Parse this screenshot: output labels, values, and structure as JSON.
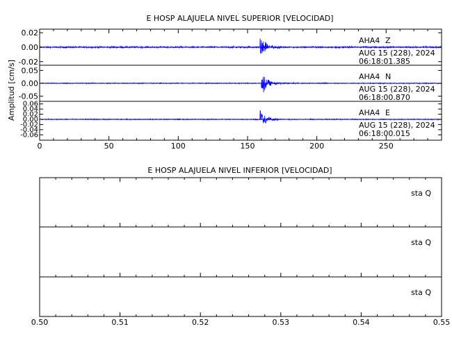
{
  "chart_data": [
    {
      "type": "line",
      "title": "E HOSP ALAJUELA NIVEL SUPERIOR [VELOCIDAD]",
      "ylabel": "Amplitud [cm/s]",
      "xlabel": "",
      "xlim": [
        0,
        290
      ],
      "x_ticks": [
        0,
        50,
        100,
        150,
        200,
        250
      ],
      "grid": false,
      "line_color": "#0000ff",
      "panels": [
        {
          "station": "AHA4",
          "component": "Z",
          "date": "AUG 15 (228), 2024",
          "time": "06:18:01.385",
          "ylim": [
            -0.025,
            0.025
          ],
          "y_ticks": [
            "0.02",
            "0.00",
            "-0.02"
          ],
          "y_tick_values": [
            0.02,
            0.0,
            -0.02
          ],
          "event_onset_s": 159,
          "peak_amplitude": 0.024,
          "noise_amplitude": 0.0012
        },
        {
          "station": "AHA4",
          "component": "N",
          "date": "AUG 15 (228), 2024",
          "time": "06:18:00.870",
          "ylim": [
            -0.07,
            0.07
          ],
          "y_ticks": [
            "0.05",
            "0.00",
            "-0.05"
          ],
          "y_tick_values": [
            0.05,
            0.0,
            -0.05
          ],
          "event_onset_s": 160,
          "peak_amplitude": 0.062,
          "noise_amplitude": 0.002
        },
        {
          "station": "AHA4",
          "component": "E",
          "date": "AUG 15 (228), 2024",
          "time": "06:18:00.015",
          "ylim": [
            -0.07,
            0.07
          ],
          "y_ticks": [
            "0.06",
            "0.04",
            "0.02",
            "0.00",
            "-0.02",
            "-0.04",
            "-0.06"
          ],
          "y_tick_values": [
            0.06,
            0.04,
            0.02,
            0.0,
            -0.02,
            -0.04,
            -0.06
          ],
          "event_onset_s": 159,
          "peak_amplitude": 0.055,
          "noise_amplitude": 0.002
        }
      ]
    },
    {
      "type": "line",
      "title": "E HOSP ALAJUELA NIVEL INFERIOR [VELOCIDAD]",
      "xlabel": "",
      "ylabel": "",
      "xlim": [
        0.5,
        0.55
      ],
      "x_ticks": [
        "0.50",
        "0.51",
        "0.52",
        "0.53",
        "0.54",
        "0.55"
      ],
      "x_tick_values": [
        0.5,
        0.51,
        0.52,
        0.53,
        0.54,
        0.55
      ],
      "grid": false,
      "panels": [
        {
          "label": "sta  Q"
        },
        {
          "label": "sta  Q"
        },
        {
          "label": "sta  Q"
        }
      ]
    }
  ]
}
